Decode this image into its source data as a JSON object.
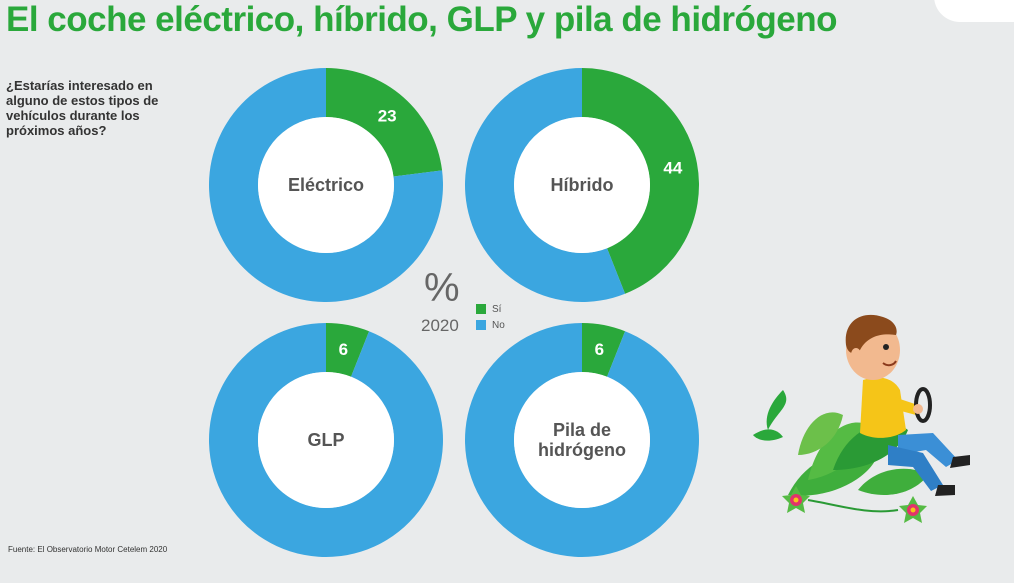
{
  "title": "El coche eléctrico, híbrido, GLP y pila de hidrógeno",
  "question": "¿Estarías interesado en alguno de estos tipos de vehículos durante los próximos años?",
  "source": "Fuente: El Observatorio Motor Cetelem 2020",
  "unit": "%",
  "year": "2020",
  "legend": {
    "yes_label": "Sí",
    "no_label": "No"
  },
  "colors": {
    "yes": "#2aa83b",
    "no": "#3ba6e0",
    "title": "#2aa83b",
    "background": "#e9ebec"
  },
  "chart_data": [
    {
      "type": "pie",
      "donut": true,
      "label": "Eléctrico",
      "value_label": "23",
      "slices": [
        {
          "name": "Sí",
          "value": 23
        },
        {
          "name": "No",
          "value": 77
        }
      ]
    },
    {
      "type": "pie",
      "donut": true,
      "label": "Híbrido",
      "value_label": "44",
      "slices": [
        {
          "name": "Sí",
          "value": 44
        },
        {
          "name": "No",
          "value": 56
        }
      ]
    },
    {
      "type": "pie",
      "donut": true,
      "label": "GLP",
      "value_label": "6",
      "slices": [
        {
          "name": "Sí",
          "value": 6
        },
        {
          "name": "No",
          "value": 94
        }
      ]
    },
    {
      "type": "pie",
      "donut": true,
      "label": "Pila de hidrógeno",
      "value_label": "6",
      "slices": [
        {
          "name": "Sí",
          "value": 6
        },
        {
          "name": "No",
          "value": 94
        }
      ]
    }
  ]
}
